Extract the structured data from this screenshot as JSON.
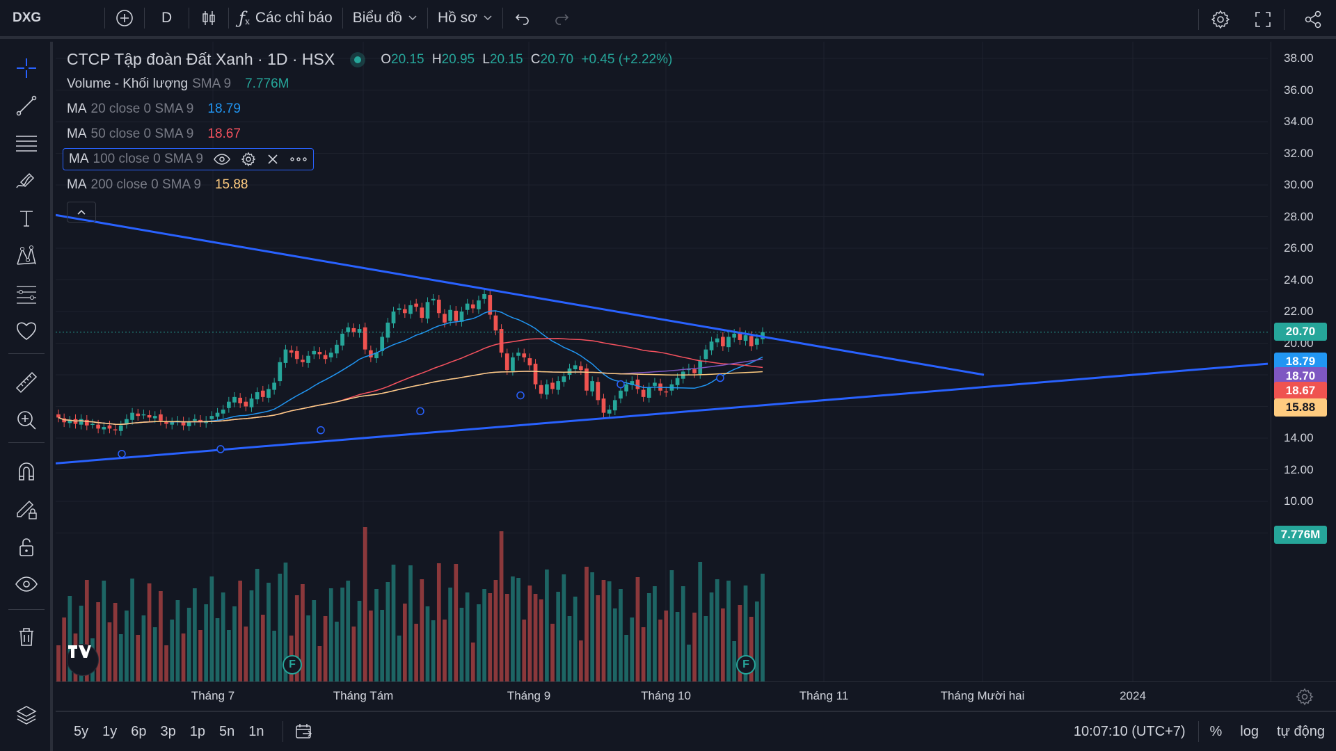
{
  "topbar": {
    "symbol": "DXG",
    "interval": "D",
    "indicators_label": "Các chỉ báo",
    "chart_label": "Biểu đồ",
    "profile_label": "Hồ sơ"
  },
  "legend": {
    "title": "CTCP Tập đoàn Đất Xanh · 1D · HSX",
    "ohlc": {
      "o_label": "O",
      "o": "20.15",
      "h_label": "H",
      "h": "20.95",
      "l_label": "L",
      "l": "20.15",
      "c_label": "C",
      "c": "20.70",
      "change": "+0.45 (+2.22%)"
    },
    "indicators": [
      {
        "name": "Volume - Khối lượng",
        "params": "SMA 9",
        "value": "7.776M",
        "color": "#26a69a"
      },
      {
        "name": "MA",
        "params": "20 close 0 SMA 9",
        "value": "18.79",
        "color": "#2196f3"
      },
      {
        "name": "MA",
        "params": "50 close 0 SMA 9",
        "value": "18.67",
        "color": "#f7525f"
      },
      {
        "name": "MA",
        "params": "100 close 0 SMA 9",
        "value": "",
        "color": "#7e57c2"
      },
      {
        "name": "MA",
        "params": "200 close 0 SMA 9",
        "value": "15.88",
        "color": "#ffcc80"
      }
    ]
  },
  "price_axis": {
    "ticks": [
      "38.00",
      "36.00",
      "34.00",
      "32.00",
      "30.00",
      "28.00",
      "26.00",
      "24.00",
      "22.00",
      "20.00",
      "14.00",
      "12.00",
      "10.00"
    ],
    "tags": [
      {
        "value": "20.70",
        "color": "#26a69a"
      },
      {
        "value": "18.79",
        "color": "#2196f3"
      },
      {
        "value": "18.70",
        "color": "#7e57c2"
      },
      {
        "value": "18.67",
        "color": "#ef5350"
      },
      {
        "value": "15.88",
        "color": "#ffcc80"
      },
      {
        "value": "7.776M",
        "color": "#26a69a"
      }
    ]
  },
  "time_axis": {
    "labels": [
      "Tháng 7",
      "Tháng Tám",
      "Tháng 9",
      "Tháng 10",
      "Tháng 11",
      "Tháng Mười hai",
      "2024"
    ]
  },
  "bottombar": {
    "ranges": [
      "5y",
      "1y",
      "6p",
      "3p",
      "1p",
      "5n",
      "1n"
    ],
    "clock": "10:07:10 (UTC+7)",
    "percent": "%",
    "log": "log",
    "auto": "tự động"
  },
  "chart_data": {
    "type": "candlestick",
    "symbol": "DXG",
    "up_color": "#26a69a",
    "down_color": "#ef5350",
    "ylim": [
      7.0,
      39.2
    ],
    "last_close": 20.7
  }
}
